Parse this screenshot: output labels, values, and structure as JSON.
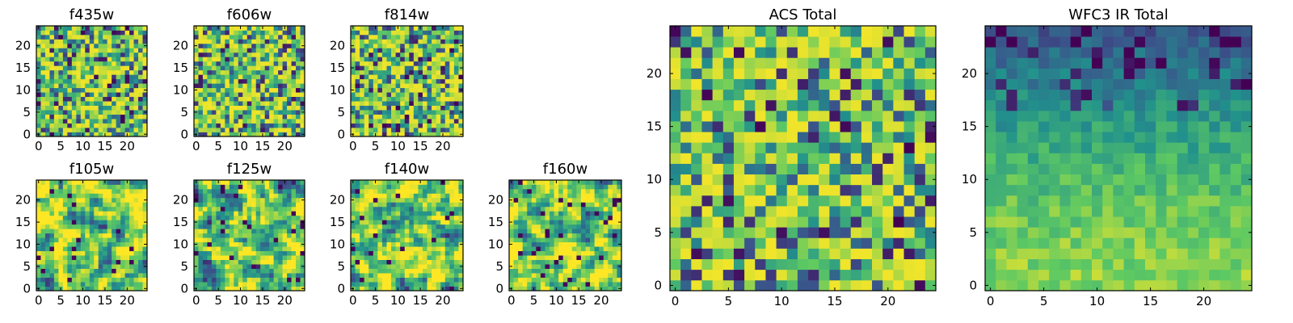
{
  "figure": {
    "colormap": "viridis",
    "colormap_stops": [
      "#440154",
      "#3b528b",
      "#21918c",
      "#5ec962",
      "#fde725"
    ]
  },
  "chart_data": [
    {
      "type": "heatmap",
      "title": "f435w",
      "grid_size": 25,
      "xticks": [
        "0",
        "5",
        "10",
        "15",
        "20"
      ],
      "yticks": [
        "0",
        "5",
        "10",
        "15",
        "20"
      ],
      "pattern": "noise"
    },
    {
      "type": "heatmap",
      "title": "f606w",
      "grid_size": 25,
      "xticks": [
        "0",
        "5",
        "10",
        "15",
        "20"
      ],
      "yticks": [
        "0",
        "5",
        "10",
        "15",
        "20"
      ],
      "pattern": "noise"
    },
    {
      "type": "heatmap",
      "title": "f814w",
      "grid_size": 25,
      "xticks": [
        "0",
        "5",
        "10",
        "15",
        "20"
      ],
      "yticks": [
        "0",
        "5",
        "10",
        "15",
        "20"
      ],
      "pattern": "noise"
    },
    {
      "type": "heatmap",
      "title": "f105w",
      "grid_size": 25,
      "xticks": [
        "0",
        "5",
        "10",
        "15",
        "20"
      ],
      "yticks": [
        "0",
        "5",
        "10",
        "15",
        "20"
      ],
      "pattern": "smooth"
    },
    {
      "type": "heatmap",
      "title": "f125w",
      "grid_size": 25,
      "xticks": [
        "0",
        "5",
        "10",
        "15",
        "20"
      ],
      "yticks": [
        "0",
        "5",
        "10",
        "15",
        "20"
      ],
      "pattern": "smooth"
    },
    {
      "type": "heatmap",
      "title": "f140w",
      "grid_size": 25,
      "xticks": [
        "0",
        "5",
        "10",
        "15",
        "20"
      ],
      "yticks": [
        "0",
        "5",
        "10",
        "15",
        "20"
      ],
      "pattern": "smooth"
    },
    {
      "type": "heatmap",
      "title": "f160w",
      "grid_size": 25,
      "xticks": [
        "0",
        "5",
        "10",
        "15",
        "20"
      ],
      "yticks": [
        "0",
        "5",
        "10",
        "15",
        "20"
      ],
      "pattern": "smooth"
    },
    {
      "type": "heatmap",
      "title": "ACS Total",
      "grid_size": 25,
      "xticks": [
        "0",
        "5",
        "10",
        "15",
        "20"
      ],
      "yticks": [
        "0",
        "5",
        "10",
        "15",
        "20"
      ],
      "pattern": "noise"
    },
    {
      "type": "heatmap",
      "title": "WFC3 IR Total",
      "grid_size": 25,
      "xticks": [
        "0",
        "5",
        "10",
        "15",
        "20"
      ],
      "yticks": [
        "0",
        "5",
        "10",
        "15",
        "20"
      ],
      "pattern": "gradient"
    }
  ]
}
